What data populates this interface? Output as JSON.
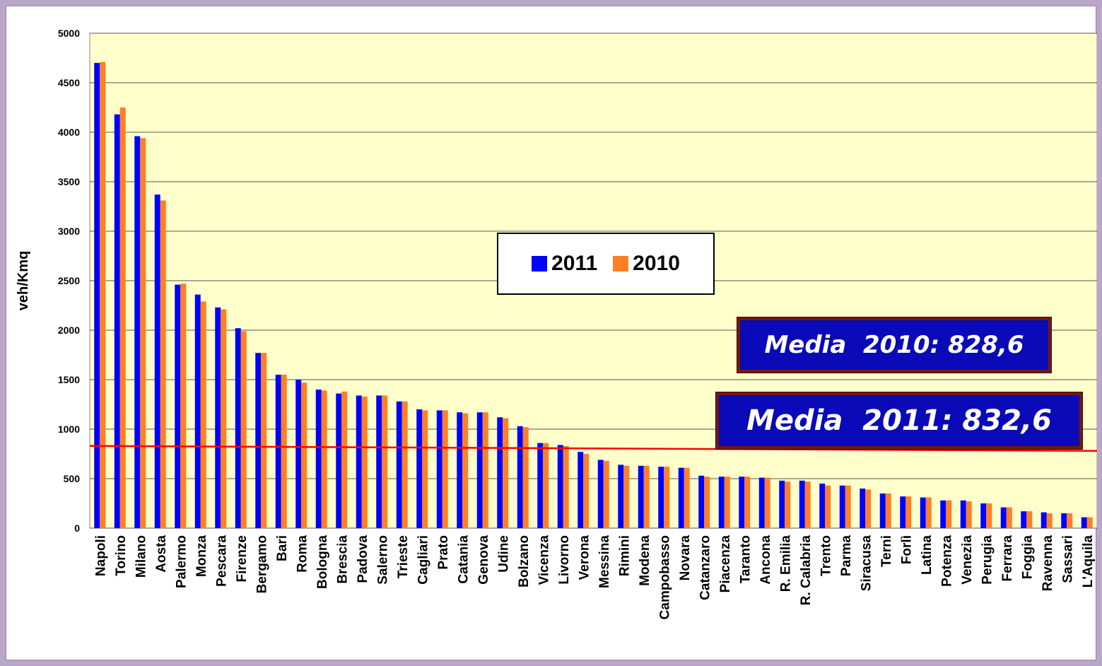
{
  "chart_data": {
    "type": "bar",
    "ylabel": "veh/Kmq",
    "ylim": [
      0,
      5000
    ],
    "yticks": [
      0,
      500,
      1000,
      1500,
      2000,
      2500,
      3000,
      3500,
      4000,
      4500,
      5000
    ],
    "grid": true,
    "legend_position": "center",
    "categories": [
      "Napoli",
      "Torino",
      "Milano",
      "Aosta",
      "Palermo",
      "Monza",
      "Pescara",
      "Firenze",
      "Bergamo",
      "Bari",
      "Roma",
      "Bologna",
      "Brescia",
      "Padova",
      "Salerno",
      "Trieste",
      "Cagliari",
      "Prato",
      "Catania",
      "Genova",
      "Udine",
      "Bolzano",
      "Vicenza",
      "Livorno",
      "Verona",
      "Messina",
      "Rimini",
      "Modena",
      "Campobasso",
      "Novara",
      "Catanzaro",
      "Piacenza",
      "Taranto",
      "Ancona",
      "R. Emilia",
      "R. Calabria",
      "Trento",
      "Parma",
      "Siracusa",
      "Terni",
      "Forlì",
      "Latina",
      "Potenza",
      "Venezia",
      "Perugia",
      "Ferrara",
      "Foggia",
      "Ravenna",
      "Sassari",
      "L'Aquila"
    ],
    "series": [
      {
        "name": "2011",
        "color": "#0000ff",
        "values": [
          4700,
          4180,
          3960,
          3370,
          2460,
          2360,
          2230,
          2020,
          1770,
          1550,
          1500,
          1400,
          1360,
          1340,
          1340,
          1280,
          1200,
          1190,
          1170,
          1170,
          1120,
          1030,
          860,
          840,
          770,
          690,
          640,
          630,
          620,
          610,
          530,
          520,
          520,
          510,
          480,
          480,
          450,
          430,
          400,
          350,
          320,
          310,
          280,
          280,
          250,
          210,
          170,
          160,
          150,
          110
        ]
      },
      {
        "name": "2010",
        "color": "#ff7f27",
        "values": [
          4710,
          4250,
          3940,
          3310,
          2470,
          2290,
          2210,
          1990,
          1770,
          1550,
          1470,
          1390,
          1380,
          1330,
          1340,
          1280,
          1190,
          1190,
          1160,
          1170,
          1110,
          1020,
          860,
          830,
          750,
          680,
          630,
          630,
          620,
          610,
          520,
          520,
          520,
          510,
          470,
          470,
          430,
          430,
          390,
          350,
          320,
          310,
          280,
          270,
          250,
          210,
          170,
          150,
          150,
          110
        ]
      }
    ],
    "reference_line": {
      "label_2010": "Media  2010: 828,6",
      "label_2011": "Media  2011: 832,6",
      "color": "#ff0000"
    }
  }
}
